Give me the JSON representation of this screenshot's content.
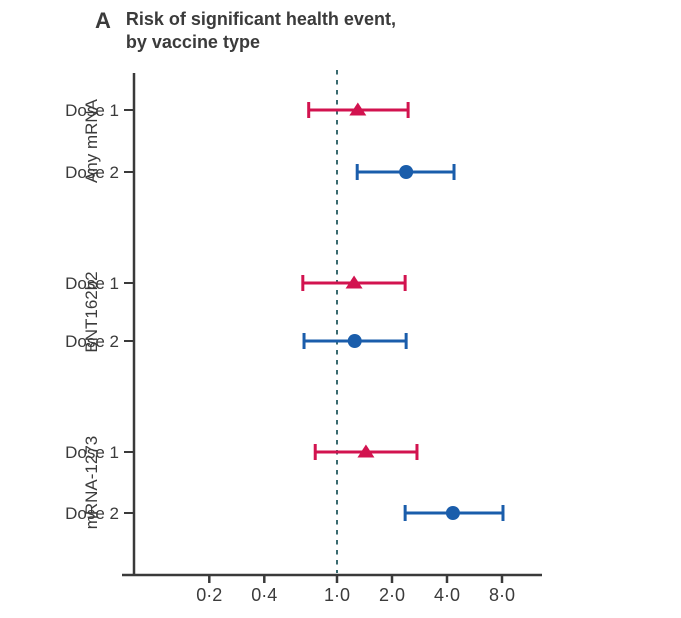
{
  "title": {
    "panel": "A",
    "line1": "Risk of significant health event,",
    "line2": "by vaccine type"
  },
  "colors": {
    "dose1_marker": "#d2134f",
    "dose2_marker": "#1a5dab",
    "reference_line": "#3a6b70",
    "axis": "#3a3a3a",
    "text": "#3b3b3b"
  },
  "chart_data": {
    "type": "scatter",
    "subtype": "forest-plot",
    "title": "Risk of significant health event, by vaccine type",
    "x_scale": "log2",
    "x_axis_ticks": [
      {
        "value": 0.2,
        "label": "0·2"
      },
      {
        "value": 0.4,
        "label": "0·4"
      },
      {
        "value": 1.0,
        "label": "1·0"
      },
      {
        "value": 2.0,
        "label": "2·0"
      },
      {
        "value": 4.0,
        "label": "4·0"
      },
      {
        "value": 8.0,
        "label": "8·0"
      }
    ],
    "xlim": [
      0.12,
      10.5
    ],
    "reference_line_value": 1.0,
    "grid": false,
    "legend": "none",
    "series_styles": {
      "Dose 1": {
        "marker": "triangle",
        "color_key": "dose1_marker"
      },
      "Dose 2": {
        "marker": "circle",
        "color_key": "dose2_marker"
      }
    },
    "groups": [
      {
        "name": "Any mRNA",
        "rows": [
          {
            "label": "Dose 1",
            "marker": "triangle",
            "estimate": 1.3,
            "ci_low": 0.7,
            "ci_high": 2.45
          },
          {
            "label": "Dose 2",
            "marker": "circle",
            "estimate": 2.39,
            "ci_low": 1.29,
            "ci_high": 4.37
          }
        ]
      },
      {
        "name": "BNT162b2",
        "rows": [
          {
            "label": "Dose 1",
            "marker": "triangle",
            "estimate": 1.24,
            "ci_low": 0.65,
            "ci_high": 2.36
          },
          {
            "label": "Dose 2",
            "marker": "circle",
            "estimate": 1.25,
            "ci_low": 0.66,
            "ci_high": 2.39
          }
        ]
      },
      {
        "name": "mRNA-1273",
        "rows": [
          {
            "label": "Dose 1",
            "marker": "triangle",
            "estimate": 1.44,
            "ci_low": 0.76,
            "ci_high": 2.74
          },
          {
            "label": "Dose 2",
            "marker": "circle",
            "estimate": 4.31,
            "ci_low": 2.36,
            "ci_high": 8.1
          }
        ]
      }
    ]
  }
}
